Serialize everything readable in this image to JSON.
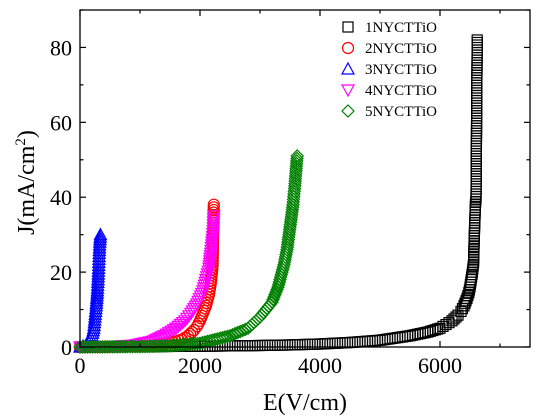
{
  "chart_data": {
    "type": "scatter",
    "title": "",
    "xlabel": "E(V/cm)",
    "ylabel_main": "J(mA/cm",
    "ylabel_sup": "2",
    "ylabel_close": ")",
    "xlim": [
      0,
      7500
    ],
    "ylim": [
      0,
      90
    ],
    "xticks": [
      0,
      2000,
      4000,
      6000
    ],
    "yticks": [
      0,
      20,
      40,
      60,
      80
    ],
    "x_minor_step": 1000,
    "y_minor_step": 10,
    "grid": false,
    "legend_position": "top-right",
    "series": [
      {
        "name": "1NYCTTiO",
        "marker": "square",
        "color": "#000000",
        "points": [
          [
            0,
            0
          ],
          [
            500,
            0.05
          ],
          [
            1000,
            0.1
          ],
          [
            1500,
            0.15
          ],
          [
            2000,
            0.2
          ],
          [
            2500,
            0.3
          ],
          [
            3000,
            0.4
          ],
          [
            3500,
            0.55
          ],
          [
            4000,
            0.8
          ],
          [
            4500,
            1.2
          ],
          [
            5000,
            1.8
          ],
          [
            5500,
            3
          ],
          [
            5800,
            4
          ],
          [
            6000,
            5
          ],
          [
            6100,
            6
          ],
          [
            6200,
            7
          ],
          [
            6300,
            8.5
          ],
          [
            6350,
            9.5
          ],
          [
            6400,
            11
          ],
          [
            6450,
            13
          ],
          [
            6480,
            14.5
          ],
          [
            6500,
            16
          ],
          [
            6520,
            18
          ],
          [
            6540,
            20
          ],
          [
            6560,
            22.5
          ],
          [
            6570,
            29
          ],
          [
            6590,
            38
          ],
          [
            6600,
            39.5
          ],
          [
            6620,
            82
          ]
        ]
      },
      {
        "name": "2NYCTTiO",
        "marker": "circle",
        "color": "#ff0000",
        "points": [
          [
            0,
            0
          ],
          [
            500,
            0.05
          ],
          [
            1000,
            0.2
          ],
          [
            1200,
            0.4
          ],
          [
            1400,
            0.8
          ],
          [
            1600,
            1.5
          ],
          [
            1700,
            2
          ],
          [
            1800,
            3
          ],
          [
            1900,
            4.5
          ],
          [
            1950,
            5.5
          ],
          [
            2000,
            7
          ],
          [
            2050,
            9
          ],
          [
            2100,
            11
          ],
          [
            2150,
            14
          ],
          [
            2180,
            17
          ],
          [
            2200,
            20
          ],
          [
            2210,
            22
          ],
          [
            2230,
            38
          ]
        ]
      },
      {
        "name": "3NYCTTiO",
        "marker": "triangle-up",
        "color": "#0000ff",
        "points": [
          [
            0,
            0
          ],
          [
            100,
            0.5
          ],
          [
            150,
            1
          ],
          [
            200,
            3
          ],
          [
            230,
            5
          ],
          [
            250,
            8
          ],
          [
            270,
            11
          ],
          [
            290,
            15
          ],
          [
            300,
            18
          ],
          [
            310,
            21
          ],
          [
            320,
            25
          ],
          [
            330,
            28
          ],
          [
            340,
            30
          ]
        ]
      },
      {
        "name": "4NYCTTiO",
        "marker": "triangle-down",
        "color": "#ff00ff",
        "points": [
          [
            0,
            0
          ],
          [
            500,
            0.1
          ],
          [
            900,
            0.5
          ],
          [
            1200,
            1.5
          ],
          [
            1400,
            3
          ],
          [
            1600,
            5
          ],
          [
            1750,
            7
          ],
          [
            1850,
            9
          ],
          [
            1950,
            11.5
          ],
          [
            2050,
            15
          ],
          [
            2100,
            18
          ],
          [
            2150,
            21
          ],
          [
            2180,
            25
          ],
          [
            2200,
            28
          ],
          [
            2220,
            31
          ],
          [
            2230,
            35
          ]
        ]
      },
      {
        "name": "5NYCTTiO",
        "marker": "diamond",
        "color": "#008000",
        "points": [
          [
            0,
            0
          ],
          [
            500,
            0.05
          ],
          [
            1000,
            0.1
          ],
          [
            1500,
            0.3
          ],
          [
            2000,
            1
          ],
          [
            2500,
            3
          ],
          [
            2800,
            5
          ],
          [
            3000,
            8
          ],
          [
            3200,
            12
          ],
          [
            3300,
            16
          ],
          [
            3400,
            22
          ],
          [
            3450,
            26
          ],
          [
            3500,
            32
          ],
          [
            3550,
            38
          ],
          [
            3580,
            43
          ],
          [
            3600,
            47
          ],
          [
            3610,
            49
          ],
          [
            3620,
            51
          ]
        ]
      }
    ]
  }
}
